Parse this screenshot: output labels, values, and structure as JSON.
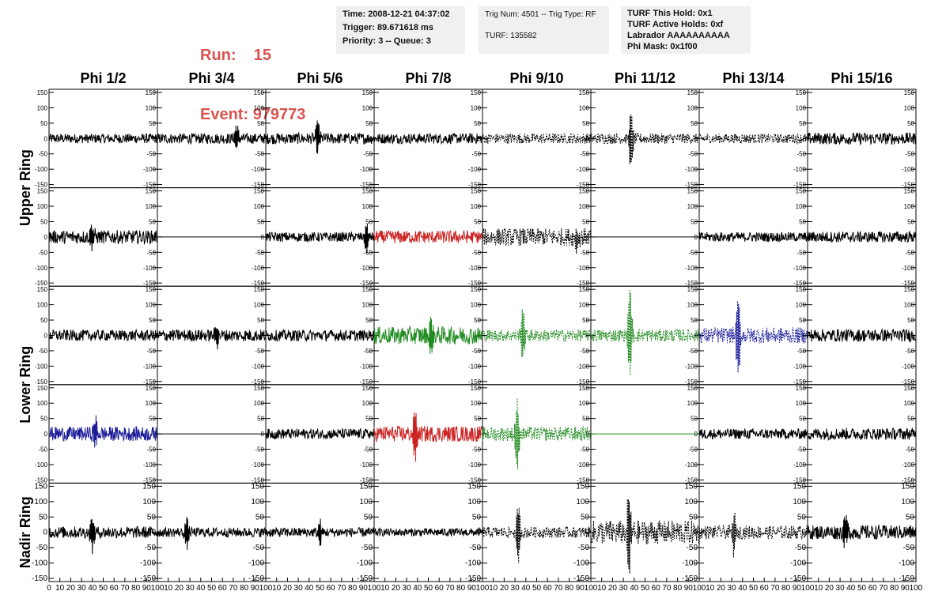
{
  "header": {
    "run_label": "Run:",
    "run_value": "15",
    "event_label": "Event:",
    "event_value": "979773",
    "time_lines": [
      "Time: 2008-12-21 04:37:02",
      "Trigger: 89.671618 ms",
      "Priority: 3 -- Queue: 3"
    ],
    "trig_lines": [
      "Trig Num: 4501 -- Trig Type: RF",
      "TURF: 135582"
    ],
    "turf_lines": [
      "TURF This Hold: 0x1",
      "TURF Active Holds: 0xf",
      "Labrador AAAAAAAAAA",
      "Phi Mask: 0x1f00"
    ]
  },
  "columns": [
    "Phi 1/2",
    "Phi 3/4",
    "Phi 5/6",
    "Phi 7/8",
    "Phi 9/10",
    "Phi 11/12",
    "Phi 13/14",
    "Phi 15/16"
  ],
  "ring_labels": [
    "Upper Ring",
    "Lower Ring",
    "Nadir Ring"
  ],
  "y_ticks": [
    "150",
    "100",
    "50",
    "0",
    "-50",
    "-100",
    "-150"
  ],
  "x_ticks": [
    "0",
    "10",
    "20",
    "30",
    "40",
    "50",
    "60",
    "70",
    "80",
    "90",
    "100"
  ],
  "colors": {
    "black": "#000000",
    "red": "#cc2222",
    "green": "#228b22",
    "blue": "#1c1c99",
    "header_red": "#d9534f"
  },
  "chart_data": {
    "type": "line",
    "xlim": [
      0,
      100
    ],
    "ylim": [
      -150,
      150
    ],
    "rows": [
      {
        "panels": [
          {
            "color": "black",
            "style": "solid",
            "amp": 12,
            "flat": false,
            "peak": null
          },
          {
            "color": "black",
            "style": "solid",
            "amp": 13,
            "flat": false,
            "peak": {
              "x": 73,
              "v": 40
            }
          },
          {
            "color": "black",
            "style": "solid",
            "amp": 14,
            "flat": false,
            "peak": {
              "x": 48,
              "v": 45
            }
          },
          {
            "color": "black",
            "style": "solid",
            "amp": 13,
            "flat": false,
            "peak": null
          },
          {
            "color": "black",
            "style": "dashed",
            "amp": 13,
            "flat": false,
            "peak": null
          },
          {
            "color": "black",
            "style": "dashed",
            "amp": 13,
            "flat": false,
            "peak": {
              "x": 37,
              "v": -95
            }
          },
          {
            "color": "black",
            "style": "dashed",
            "amp": 12,
            "flat": false,
            "peak": null
          },
          {
            "color": "black",
            "style": "solid",
            "amp": 15,
            "flat": false,
            "peak": null
          }
        ]
      },
      {
        "panels": [
          {
            "color": "black",
            "style": "solid",
            "amp": 17,
            "flat": false,
            "peak": {
              "x": 40,
              "v": 35
            }
          },
          {
            "color": "black",
            "style": "solid",
            "amp": 0,
            "flat": true,
            "peak": null
          },
          {
            "color": "black",
            "style": "solid",
            "amp": 12,
            "flat": false,
            "peak": {
              "x": 93,
              "v": -55
            }
          },
          {
            "color": "red",
            "style": "solid",
            "amp": 16,
            "flat": false,
            "peak": null
          },
          {
            "color": "black",
            "style": "dashed",
            "amp": 22,
            "flat": false,
            "peak": {
              "x": 87,
              "v": -55
            }
          },
          {
            "color": "black",
            "style": "solid",
            "amp": 0,
            "flat": true,
            "peak": null
          },
          {
            "color": "black",
            "style": "solid",
            "amp": 12,
            "flat": false,
            "peak": null
          },
          {
            "color": "black",
            "style": "solid",
            "amp": 14,
            "flat": false,
            "peak": null
          }
        ]
      },
      {
        "panels": [
          {
            "color": "black",
            "style": "solid",
            "amp": 14,
            "flat": false,
            "peak": null
          },
          {
            "color": "black",
            "style": "solid",
            "amp": 15,
            "flat": false,
            "peak": {
              "x": 55,
              "v": 40
            }
          },
          {
            "color": "black",
            "style": "solid",
            "amp": 14,
            "flat": false,
            "peak": null
          },
          {
            "color": "green",
            "style": "solid",
            "amp": 22,
            "flat": false,
            "peak": {
              "x": 52,
              "v": -50
            }
          },
          {
            "color": "green",
            "style": "dashed",
            "amp": 15,
            "flat": false,
            "peak": {
              "x": 37,
              "v": 88
            }
          },
          {
            "color": "green",
            "style": "dashed",
            "amp": 16,
            "flat": false,
            "peak": {
              "x": 36,
              "v": 140
            }
          },
          {
            "color": "blue",
            "style": "dashed",
            "amp": 20,
            "flat": false,
            "peak": {
              "x": 36,
              "v": -130
            }
          },
          {
            "color": "black",
            "style": "solid",
            "amp": 16,
            "flat": false,
            "peak": null
          }
        ]
      },
      {
        "panels": [
          {
            "color": "blue",
            "style": "solid",
            "amp": 18,
            "flat": false,
            "peak": {
              "x": 43,
              "v": 40
            }
          },
          {
            "color": "black",
            "style": "solid",
            "amp": 0,
            "flat": true,
            "peak": null
          },
          {
            "color": "black",
            "style": "solid",
            "amp": 13,
            "flat": false,
            "peak": null
          },
          {
            "color": "red",
            "style": "solid",
            "amp": 20,
            "flat": false,
            "peak": {
              "x": 38,
              "v": -80
            }
          },
          {
            "color": "green",
            "style": "dashed",
            "amp": 18,
            "flat": false,
            "peak": {
              "x": 32,
              "v": -120
            }
          },
          {
            "color": "green",
            "style": "solid",
            "amp": 0,
            "flat": true,
            "peak": null
          },
          {
            "color": "black",
            "style": "solid",
            "amp": 13,
            "flat": false,
            "peak": null
          },
          {
            "color": "black",
            "style": "solid",
            "amp": 15,
            "flat": false,
            "peak": null
          }
        ]
      },
      {
        "panels": [
          {
            "color": "black",
            "style": "solid",
            "amp": 15,
            "flat": false,
            "peak": {
              "x": 40,
              "v": -55
            }
          },
          {
            "color": "black",
            "style": "solid",
            "amp": 12,
            "flat": false,
            "peak": {
              "x": 27,
              "v": -45
            }
          },
          {
            "color": "black",
            "style": "solid",
            "amp": 12,
            "flat": false,
            "peak": {
              "x": 50,
              "v": -40
            }
          },
          {
            "color": "black",
            "style": "solid",
            "amp": 10,
            "flat": false,
            "peak": null
          },
          {
            "color": "black",
            "style": "dashed",
            "amp": 14,
            "flat": false,
            "peak": {
              "x": 33,
              "v": -95
            }
          },
          {
            "color": "black",
            "style": "dashed",
            "amp": 30,
            "flat": false,
            "peak": {
              "x": 35,
              "v": -130
            }
          },
          {
            "color": "black",
            "style": "dashed",
            "amp": 17,
            "flat": false,
            "peak": {
              "x": 32,
              "v": -70
            }
          },
          {
            "color": "black",
            "style": "solid",
            "amp": 18,
            "flat": false,
            "peak": {
              "x": 35,
              "v": 55
            }
          }
        ]
      }
    ]
  }
}
